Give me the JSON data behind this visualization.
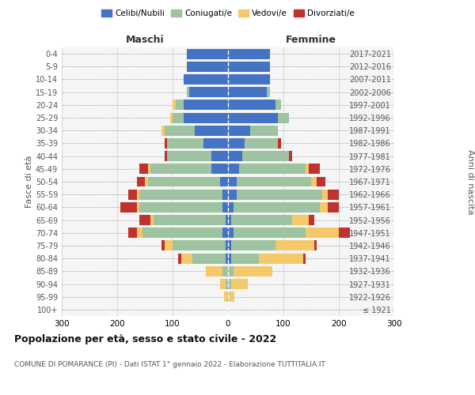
{
  "age_groups": [
    "100+",
    "95-99",
    "90-94",
    "85-89",
    "80-84",
    "75-79",
    "70-74",
    "65-69",
    "60-64",
    "55-59",
    "50-54",
    "45-49",
    "40-44",
    "35-39",
    "30-34",
    "25-29",
    "20-24",
    "15-19",
    "10-14",
    "5-9",
    "0-4"
  ],
  "birth_years": [
    "≤ 1921",
    "1922-1926",
    "1927-1931",
    "1932-1936",
    "1937-1941",
    "1942-1946",
    "1947-1951",
    "1952-1956",
    "1957-1961",
    "1962-1966",
    "1967-1971",
    "1972-1976",
    "1977-1981",
    "1982-1986",
    "1987-1991",
    "1992-1996",
    "1997-2001",
    "2002-2006",
    "2007-2011",
    "2012-2016",
    "2017-2021"
  ],
  "male": {
    "celibi": [
      0,
      0,
      0,
      0,
      5,
      5,
      10,
      5,
      10,
      10,
      15,
      30,
      30,
      45,
      60,
      80,
      80,
      70,
      80,
      75,
      75
    ],
    "coniugati": [
      0,
      2,
      5,
      10,
      60,
      95,
      145,
      130,
      150,
      150,
      130,
      110,
      80,
      65,
      55,
      20,
      15,
      5,
      0,
      0,
      0
    ],
    "vedovi": [
      0,
      5,
      10,
      30,
      20,
      15,
      10,
      5,
      5,
      5,
      5,
      5,
      0,
      0,
      5,
      5,
      5,
      0,
      0,
      0,
      0
    ],
    "divorziati": [
      0,
      0,
      0,
      0,
      5,
      5,
      15,
      20,
      30,
      15,
      15,
      15,
      5,
      5,
      0,
      0,
      0,
      0,
      0,
      0,
      0
    ]
  },
  "female": {
    "nubili": [
      0,
      0,
      0,
      0,
      5,
      5,
      10,
      5,
      10,
      15,
      15,
      20,
      25,
      30,
      40,
      90,
      85,
      70,
      75,
      75,
      75
    ],
    "coniugate": [
      0,
      2,
      5,
      10,
      50,
      80,
      130,
      110,
      155,
      155,
      135,
      120,
      85,
      60,
      50,
      20,
      10,
      5,
      0,
      0,
      0
    ],
    "vedove": [
      0,
      10,
      30,
      70,
      80,
      70,
      60,
      30,
      15,
      10,
      10,
      5,
      0,
      0,
      0,
      0,
      0,
      0,
      0,
      0,
      0
    ],
    "divorziate": [
      0,
      0,
      0,
      0,
      5,
      5,
      20,
      10,
      20,
      20,
      15,
      20,
      5,
      5,
      0,
      0,
      0,
      0,
      0,
      0,
      0
    ]
  },
  "colors": {
    "celibi": "#4472C4",
    "coniugati": "#9DC3A0",
    "vedovi": "#F5C96A",
    "divorziati": "#C0322F"
  },
  "title": "Popolazione per età, sesso e stato civile - 2022",
  "subtitle": "COMUNE DI POMARANCE (PI) - Dati ISTAT 1° gennaio 2022 - Elaborazione TUTTITALIA.IT",
  "xlabel_left": "Maschi",
  "xlabel_right": "Femmine",
  "ylabel_left": "Fasce di età",
  "ylabel_right": "Anni di nascita",
  "xlim": 300,
  "bg_color": "#f5f5f5"
}
